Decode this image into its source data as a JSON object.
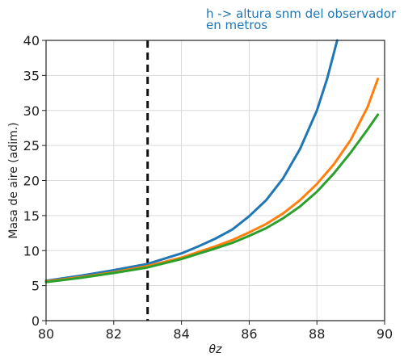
{
  "chart_data": {
    "type": "line",
    "xlabel": "θz",
    "ylabel": "Masa de aire (adim.)",
    "xlim": [
      80,
      90
    ],
    "ylim": [
      0,
      40
    ],
    "xticks": [
      "80",
      "82",
      "84",
      "86",
      "88",
      "90"
    ],
    "yticks": [
      "0",
      "5",
      "10",
      "15",
      "20",
      "25",
      "30",
      "35",
      "40"
    ],
    "grid": true,
    "annotation_lines": [
      "h -> altura snm del observador",
      "en metros"
    ],
    "vline": {
      "x": 83,
      "style": "dashed",
      "color": "#111111"
    },
    "series": [
      {
        "color": "#1f77b4",
        "x": [
          80,
          81,
          82,
          83,
          84,
          84.5,
          85,
          85.5,
          86,
          86.5,
          87,
          87.5,
          88,
          88.3,
          88.6
        ],
        "y": [
          5.7,
          6.4,
          7.2,
          8.1,
          9.6,
          10.6,
          11.7,
          13.0,
          14.9,
          17.2,
          20.3,
          24.5,
          30.0,
          34.5,
          40
        ]
      },
      {
        "color": "#ff7f0e",
        "x": [
          80,
          81,
          82,
          83,
          84,
          85,
          85.5,
          86,
          86.5,
          87,
          87.5,
          88,
          88.5,
          89,
          89.5,
          89.8
        ],
        "y": [
          5.6,
          6.2,
          6.9,
          7.8,
          9.0,
          10.6,
          11.5,
          12.6,
          13.8,
          15.3,
          17.2,
          19.5,
          22.3,
          25.8,
          30.5,
          34.5
        ]
      },
      {
        "color": "#2ca02c",
        "x": [
          80,
          81,
          82,
          83,
          84,
          85,
          85.5,
          86,
          86.5,
          87,
          87.5,
          88,
          88.5,
          89,
          89.5,
          89.8
        ],
        "y": [
          5.5,
          6.1,
          6.8,
          7.6,
          8.8,
          10.3,
          11.1,
          12.1,
          13.2,
          14.6,
          16.3,
          18.4,
          21.0,
          24.0,
          27.3,
          29.4
        ]
      }
    ]
  }
}
